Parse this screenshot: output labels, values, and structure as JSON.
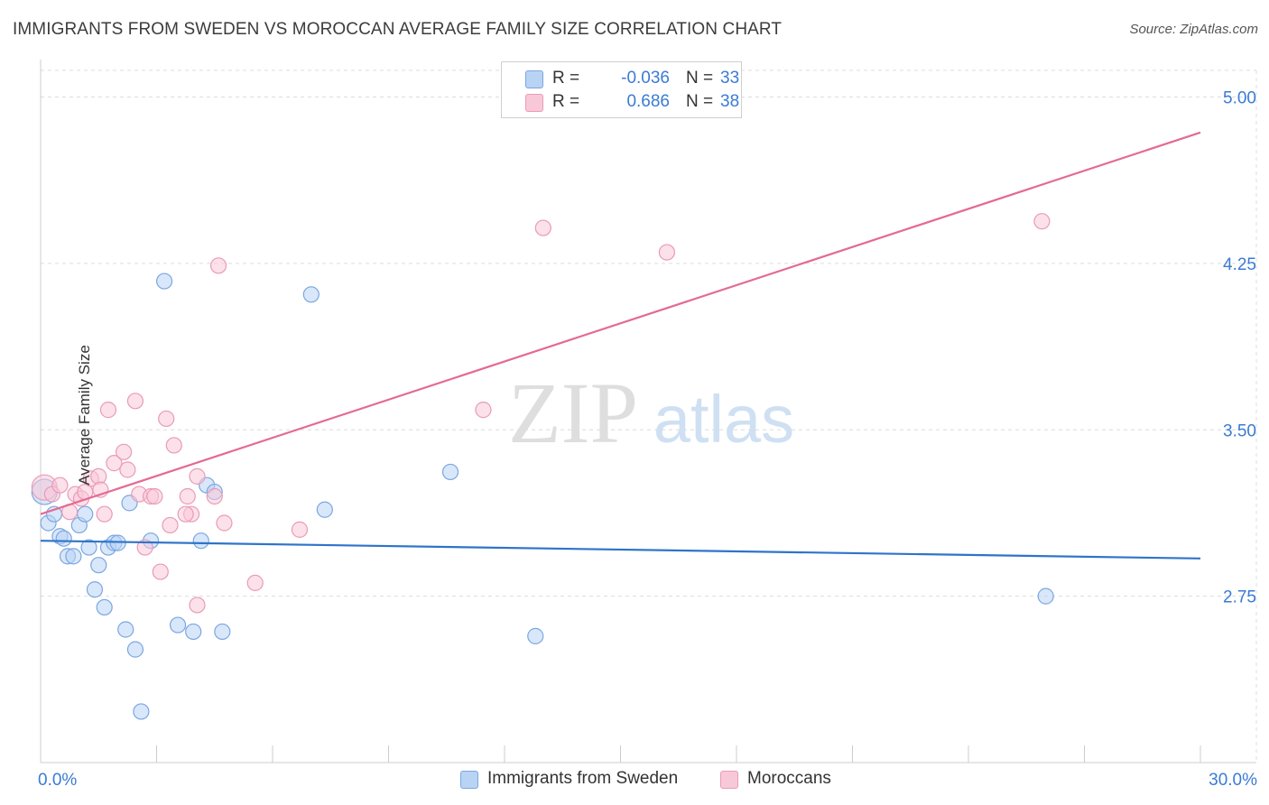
{
  "title": "IMMIGRANTS FROM SWEDEN VS MOROCCAN AVERAGE FAMILY SIZE CORRELATION CHART",
  "source": "Source: ZipAtlas.com",
  "watermark": {
    "zip": "ZIP",
    "atlas": "atlas"
  },
  "legend_top": [
    {
      "swatch_color": "#b9d3f5",
      "border_color": "#7aa7e0",
      "r_label": "R =",
      "r_value": "-0.036",
      "n_label": "N =",
      "n_value": "33"
    },
    {
      "swatch_color": "#f9c8d8",
      "border_color": "#e99bb5",
      "r_label": "R =",
      "r_value": "0.686",
      "n_label": "N =",
      "n_value": "38"
    }
  ],
  "legend_bottom": [
    {
      "label": "Immigrants from Sweden",
      "swatch_color": "#b9d3f5",
      "border_color": "#7aa7e0"
    },
    {
      "label": "Moroccans",
      "swatch_color": "#f9c8d8",
      "border_color": "#e99bb5"
    }
  ],
  "chart_data": {
    "type": "scatter",
    "title": "IMMIGRANTS FROM SWEDEN VS MOROCCAN AVERAGE FAMILY SIZE CORRELATION CHART",
    "xlabel": "",
    "ylabel": "Average Family Size",
    "xlim": [
      0,
      30
    ],
    "ylim": [
      2.0,
      5.12
    ],
    "x_tick_labels": [
      {
        "value": 0,
        "label": "0.0%"
      },
      {
        "value": 30,
        "label": "30.0%"
      }
    ],
    "y_ticks": [
      {
        "value": 5.0,
        "label": "5.00"
      },
      {
        "value": 4.25,
        "label": "4.25"
      },
      {
        "value": 3.5,
        "label": "3.50"
      },
      {
        "value": 2.75,
        "label": "2.75"
      }
    ],
    "x_minor_ticks": [
      3,
      6,
      9,
      12,
      15,
      18,
      21,
      24,
      27
    ],
    "grid": true,
    "series": [
      {
        "name": "Immigrants from Sweden",
        "color": "#7aa7e0",
        "fill": "#b9d3f5",
        "line_color": "#2e74c9",
        "trend": {
          "x": [
            0,
            30
          ],
          "y": [
            3.0,
            2.92
          ]
        },
        "points": [
          {
            "x": 0.1,
            "y": 3.22,
            "size": "large"
          },
          {
            "x": 0.2,
            "y": 3.08
          },
          {
            "x": 0.35,
            "y": 3.12
          },
          {
            "x": 0.5,
            "y": 3.02
          },
          {
            "x": 0.6,
            "y": 3.01
          },
          {
            "x": 0.7,
            "y": 2.93
          },
          {
            "x": 0.85,
            "y": 2.93
          },
          {
            "x": 1.0,
            "y": 3.07
          },
          {
            "x": 1.15,
            "y": 3.12
          },
          {
            "x": 1.25,
            "y": 2.97
          },
          {
            "x": 1.4,
            "y": 2.78
          },
          {
            "x": 1.5,
            "y": 2.89
          },
          {
            "x": 1.65,
            "y": 2.7
          },
          {
            "x": 1.75,
            "y": 2.97
          },
          {
            "x": 1.9,
            "y": 2.99
          },
          {
            "x": 2.0,
            "y": 2.99
          },
          {
            "x": 2.2,
            "y": 2.6
          },
          {
            "x": 2.3,
            "y": 3.17
          },
          {
            "x": 2.45,
            "y": 2.51
          },
          {
            "x": 2.6,
            "y": 2.23
          },
          {
            "x": 2.85,
            "y": 3.0
          },
          {
            "x": 3.2,
            "y": 4.17
          },
          {
            "x": 3.55,
            "y": 2.62
          },
          {
            "x": 3.95,
            "y": 2.59
          },
          {
            "x": 4.15,
            "y": 3.0
          },
          {
            "x": 4.3,
            "y": 3.25
          },
          {
            "x": 4.5,
            "y": 3.22
          },
          {
            "x": 4.7,
            "y": 2.59
          },
          {
            "x": 7.0,
            "y": 4.11
          },
          {
            "x": 7.35,
            "y": 3.14
          },
          {
            "x": 10.6,
            "y": 3.31
          },
          {
            "x": 12.8,
            "y": 2.57
          },
          {
            "x": 26.0,
            "y": 2.75
          }
        ]
      },
      {
        "name": "Moroccans",
        "color": "#e99bb5",
        "fill": "#f9c8d8",
        "line_color": "#e46a93",
        "trend": {
          "x": [
            0,
            30
          ],
          "y": [
            3.12,
            4.84
          ]
        },
        "points": [
          {
            "x": 0.1,
            "y": 3.24,
            "size": "large"
          },
          {
            "x": 0.3,
            "y": 3.21
          },
          {
            "x": 0.5,
            "y": 3.25
          },
          {
            "x": 0.75,
            "y": 3.13
          },
          {
            "x": 0.9,
            "y": 3.21
          },
          {
            "x": 1.05,
            "y": 3.19
          },
          {
            "x": 1.15,
            "y": 3.22
          },
          {
            "x": 1.3,
            "y": 3.28
          },
          {
            "x": 1.5,
            "y": 3.29
          },
          {
            "x": 1.55,
            "y": 3.23
          },
          {
            "x": 1.65,
            "y": 3.12
          },
          {
            "x": 1.75,
            "y": 3.59
          },
          {
            "x": 1.9,
            "y": 3.35
          },
          {
            "x": 2.15,
            "y": 3.4
          },
          {
            "x": 2.25,
            "y": 3.32
          },
          {
            "x": 2.45,
            "y": 3.63
          },
          {
            "x": 2.55,
            "y": 3.21
          },
          {
            "x": 2.7,
            "y": 2.97
          },
          {
            "x": 2.85,
            "y": 3.2
          },
          {
            "x": 2.95,
            "y": 3.2
          },
          {
            "x": 3.1,
            "y": 2.86
          },
          {
            "x": 3.25,
            "y": 3.55
          },
          {
            "x": 3.35,
            "y": 3.07
          },
          {
            "x": 3.45,
            "y": 3.43
          },
          {
            "x": 3.8,
            "y": 3.2
          },
          {
            "x": 3.9,
            "y": 3.12
          },
          {
            "x": 3.75,
            "y": 3.12
          },
          {
            "x": 4.05,
            "y": 2.71
          },
          {
            "x": 4.05,
            "y": 3.29
          },
          {
            "x": 4.5,
            "y": 3.2
          },
          {
            "x": 4.6,
            "y": 4.24
          },
          {
            "x": 4.75,
            "y": 3.08
          },
          {
            "x": 5.55,
            "y": 2.81
          },
          {
            "x": 6.7,
            "y": 3.05
          },
          {
            "x": 11.45,
            "y": 3.59
          },
          {
            "x": 13.0,
            "y": 4.41
          },
          {
            "x": 16.2,
            "y": 4.3
          },
          {
            "x": 25.9,
            "y": 4.44
          }
        ]
      }
    ]
  }
}
